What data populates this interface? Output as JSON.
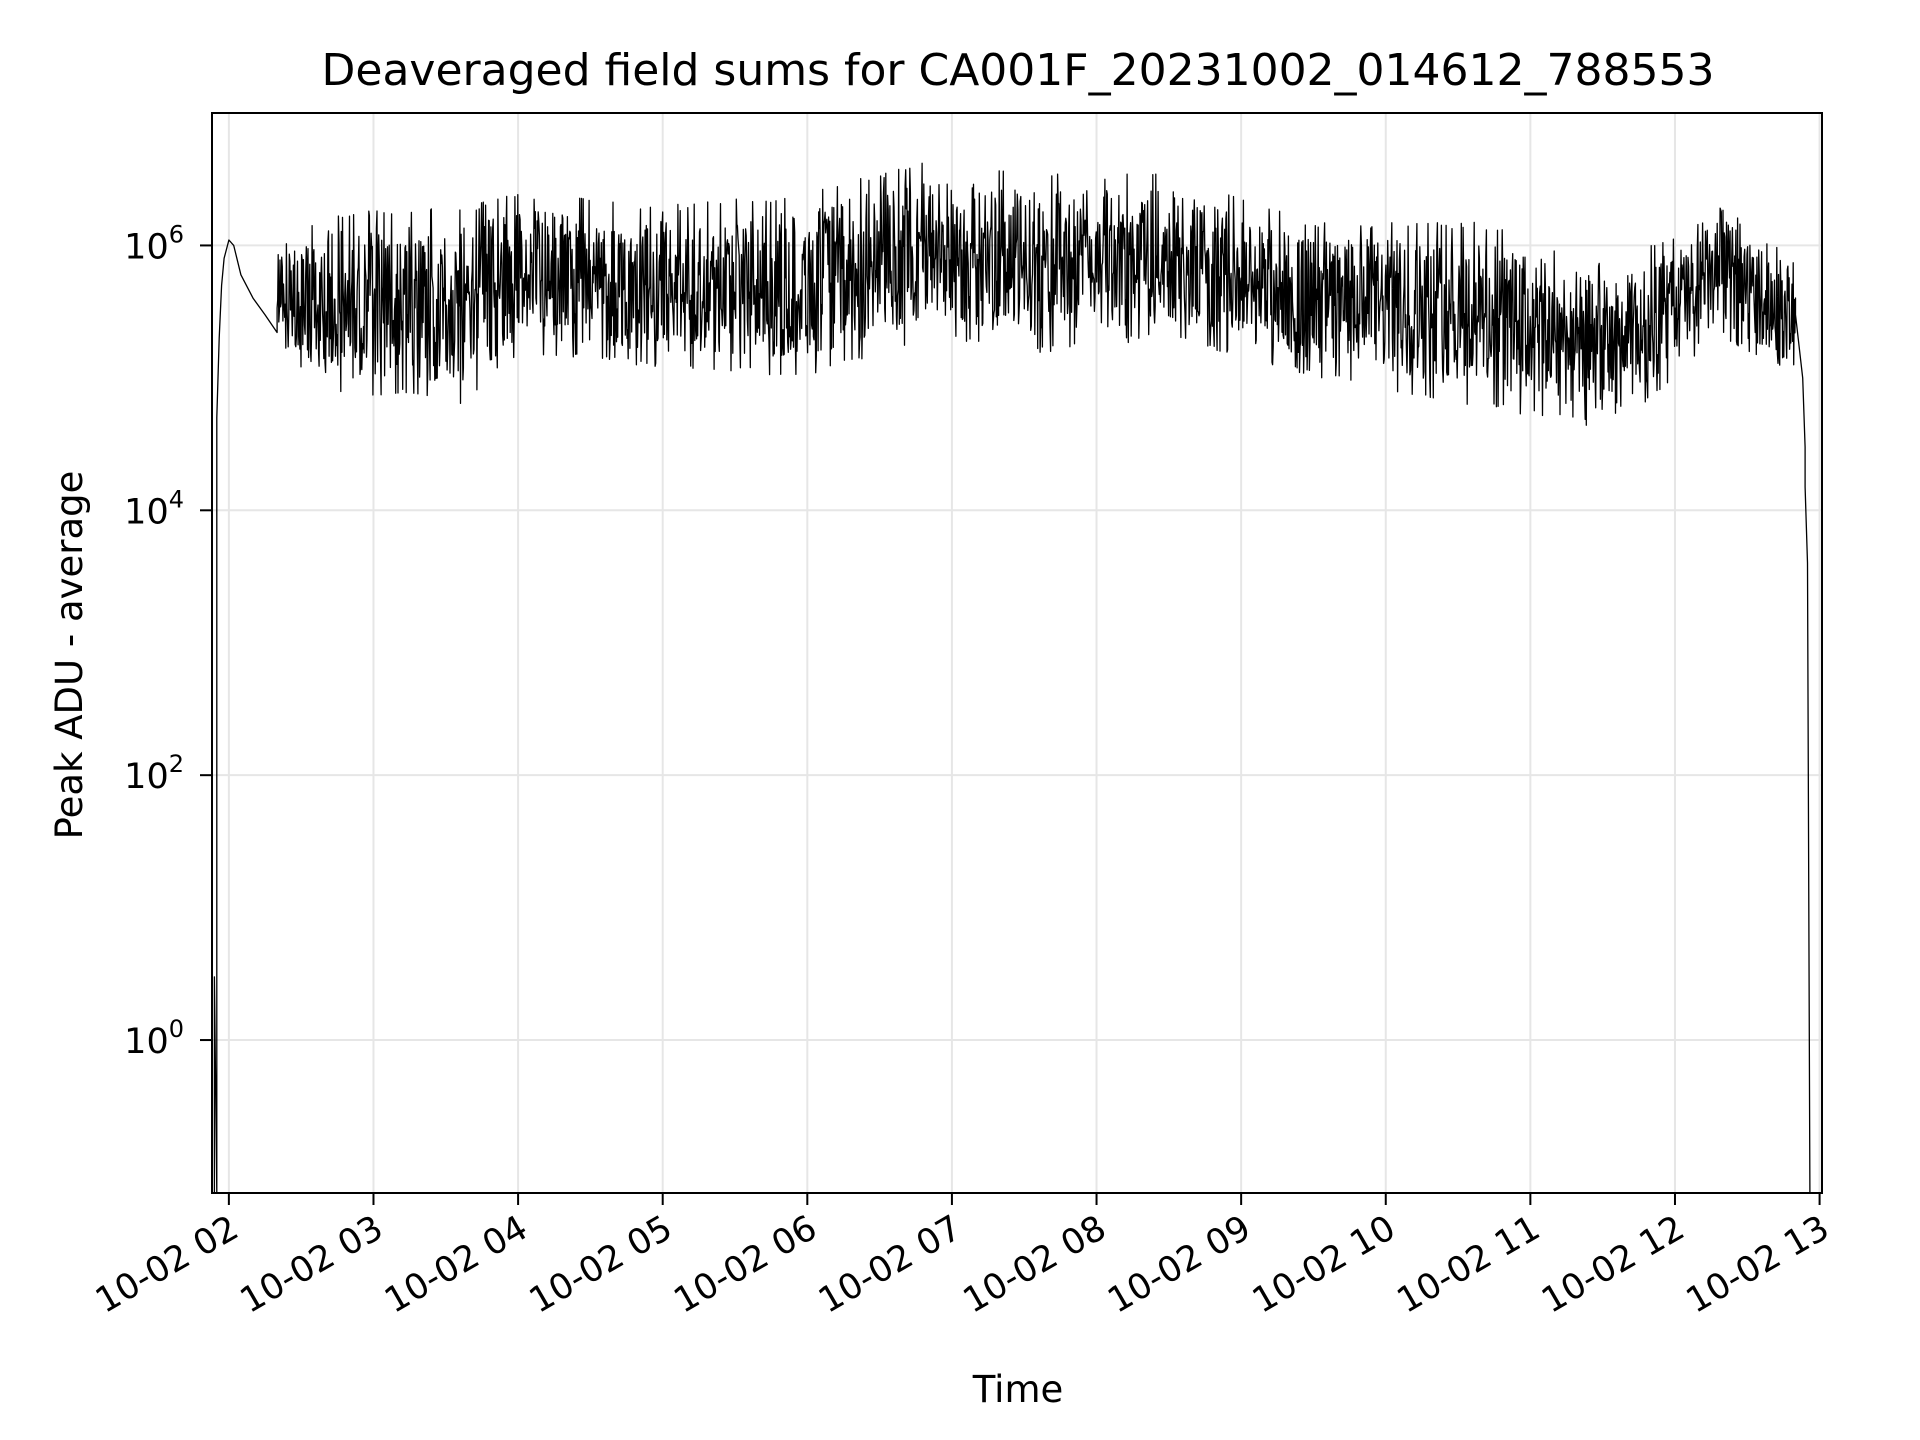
{
  "chart_data": {
    "type": "line",
    "title": "Deaveraged field sums for CA001F_20231002_014612_788553",
    "xlabel": "Time",
    "ylabel": "Peak ADU - average",
    "y_scale": "log",
    "ylim": [
      0.07,
      10000000
    ],
    "xlim": [
      "2023-10-02 01:53",
      "2023-10-02 13:01"
    ],
    "grid": true,
    "line_color": "#000000",
    "grid_color": "#e6e6e6",
    "x_ticks": [
      {
        "value": "2023-10-02 02:00",
        "label": "10-02 02"
      },
      {
        "value": "2023-10-02 03:00",
        "label": "10-02 03"
      },
      {
        "value": "2023-10-02 04:00",
        "label": "10-02 04"
      },
      {
        "value": "2023-10-02 05:00",
        "label": "10-02 05"
      },
      {
        "value": "2023-10-02 06:00",
        "label": "10-02 06"
      },
      {
        "value": "2023-10-02 07:00",
        "label": "10-02 07"
      },
      {
        "value": "2023-10-02 08:00",
        "label": "10-02 08"
      },
      {
        "value": "2023-10-02 09:00",
        "label": "10-02 09"
      },
      {
        "value": "2023-10-02 10:00",
        "label": "10-02 10"
      },
      {
        "value": "2023-10-02 11:00",
        "label": "10-02 11"
      },
      {
        "value": "2023-10-02 12:00",
        "label": "10-02 12"
      },
      {
        "value": "2023-10-02 13:00",
        "label": "10-02 13"
      }
    ],
    "y_ticks": [
      {
        "value": 1,
        "base": "10",
        "exp": "0"
      },
      {
        "value": 100,
        "base": "10",
        "exp": "2"
      },
      {
        "value": 10000,
        "base": "10",
        "exp": "4"
      },
      {
        "value": 1000000,
        "base": "10",
        "exp": "6"
      }
    ],
    "series": [
      {
        "points": [
          [
            "2023-10-02 01:54",
            0.07
          ],
          [
            "2023-10-02 01:54",
            3.0
          ],
          [
            "2023-10-02 01:55",
            0.07
          ],
          [
            "2023-10-02 01:55",
            50000
          ],
          [
            "2023-10-02 01:56",
            200000
          ],
          [
            "2023-10-02 01:57",
            500000
          ],
          [
            "2023-10-02 01:58",
            800000
          ],
          [
            "2023-10-02 02:00",
            1100000
          ],
          [
            "2023-10-02 02:02",
            1000000
          ],
          [
            "2023-10-02 02:05",
            600000
          ],
          [
            "2023-10-02 02:10",
            400000
          ],
          [
            "2023-10-02 02:15",
            300000
          ],
          [
            "2023-10-02 02:20",
            220000
          ],
          [
            "2023-10-02 02:25",
            150000
          ],
          [
            "2023-10-02 02:30",
            100000
          ],
          [
            "2023-10-02 02:35",
            80000
          ],
          [
            "2023-10-02 02:45",
            80000
          ],
          [
            "2023-10-02 03:00",
            90000
          ],
          [
            "2023-10-02 03:15",
            80000
          ],
          [
            "2023-10-02 03:30",
            90000
          ],
          [
            "2023-10-02 03:40",
            300000
          ],
          [
            "2023-10-02 04:00",
            700000
          ],
          [
            "2023-10-02 04:30",
            400000
          ],
          [
            "2023-10-02 05:00",
            450000
          ],
          [
            "2023-10-02 05:30",
            400000
          ],
          [
            "2023-10-02 06:00",
            500000
          ],
          [
            "2023-10-02 06:30",
            600000
          ],
          [
            "2023-10-02 06:50",
            1500000
          ],
          [
            "2023-10-02 07:00",
            1000000
          ],
          [
            "2023-10-02 07:30",
            700000
          ],
          [
            "2023-10-02 08:00",
            600000
          ],
          [
            "2023-10-02 08:30",
            900000
          ],
          [
            "2023-10-02 09:00",
            600000
          ],
          [
            "2023-10-02 09:30",
            400000
          ],
          [
            "2023-10-02 10:00",
            300000
          ],
          [
            "2023-10-02 10:40",
            200000
          ],
          [
            "2023-10-02 11:00",
            350000
          ],
          [
            "2023-10-02 11:30",
            150000
          ],
          [
            "2023-10-02 11:40",
            200000
          ],
          [
            "2023-10-02 12:00",
            350000
          ],
          [
            "2023-10-02 12:20",
            800000
          ],
          [
            "2023-10-02 12:40",
            500000
          ],
          [
            "2023-10-02 12:50",
            300000
          ],
          [
            "2023-10-02 12:53",
            100000
          ],
          [
            "2023-10-02 12:54",
            30000
          ],
          [
            "2023-10-02 12:54",
            15000
          ],
          [
            "2023-10-02 12:55",
            4000
          ],
          [
            "2023-10-02 12:56",
            0.07
          ]
        ],
        "envelope": [
          {
            "t": "2023-10-02 02:20",
            "low": 200000,
            "high": 1000000
          },
          {
            "t": "2023-10-02 02:40",
            "low": 70000,
            "high": 1800000
          },
          {
            "t": "2023-10-02 03:10",
            "low": 75000,
            "high": 1900000
          },
          {
            "t": "2023-10-02 03:35",
            "low": 60000,
            "high": 1900000
          },
          {
            "t": "2023-10-02 04:00",
            "low": 150000,
            "high": 2500000
          },
          {
            "t": "2023-10-02 05:00",
            "low": 120000,
            "high": 2000000
          },
          {
            "t": "2023-10-02 06:00",
            "low": 100000,
            "high": 2500000
          },
          {
            "t": "2023-10-02 06:50",
            "low": 200000,
            "high": 4500000
          },
          {
            "t": "2023-10-02 07:30",
            "low": 150000,
            "high": 3500000
          },
          {
            "t": "2023-10-02 08:30",
            "low": 200000,
            "high": 3500000
          },
          {
            "t": "2023-10-02 09:30",
            "low": 100000,
            "high": 1500000
          },
          {
            "t": "2023-10-02 10:40",
            "low": 60000,
            "high": 1500000
          },
          {
            "t": "2023-10-02 11:35",
            "low": 40000,
            "high": 700000
          },
          {
            "t": "2023-10-02 12:20",
            "low": 200000,
            "high": 2000000
          },
          {
            "t": "2023-10-02 12:50",
            "low": 100000,
            "high": 800000
          }
        ]
      }
    ]
  }
}
